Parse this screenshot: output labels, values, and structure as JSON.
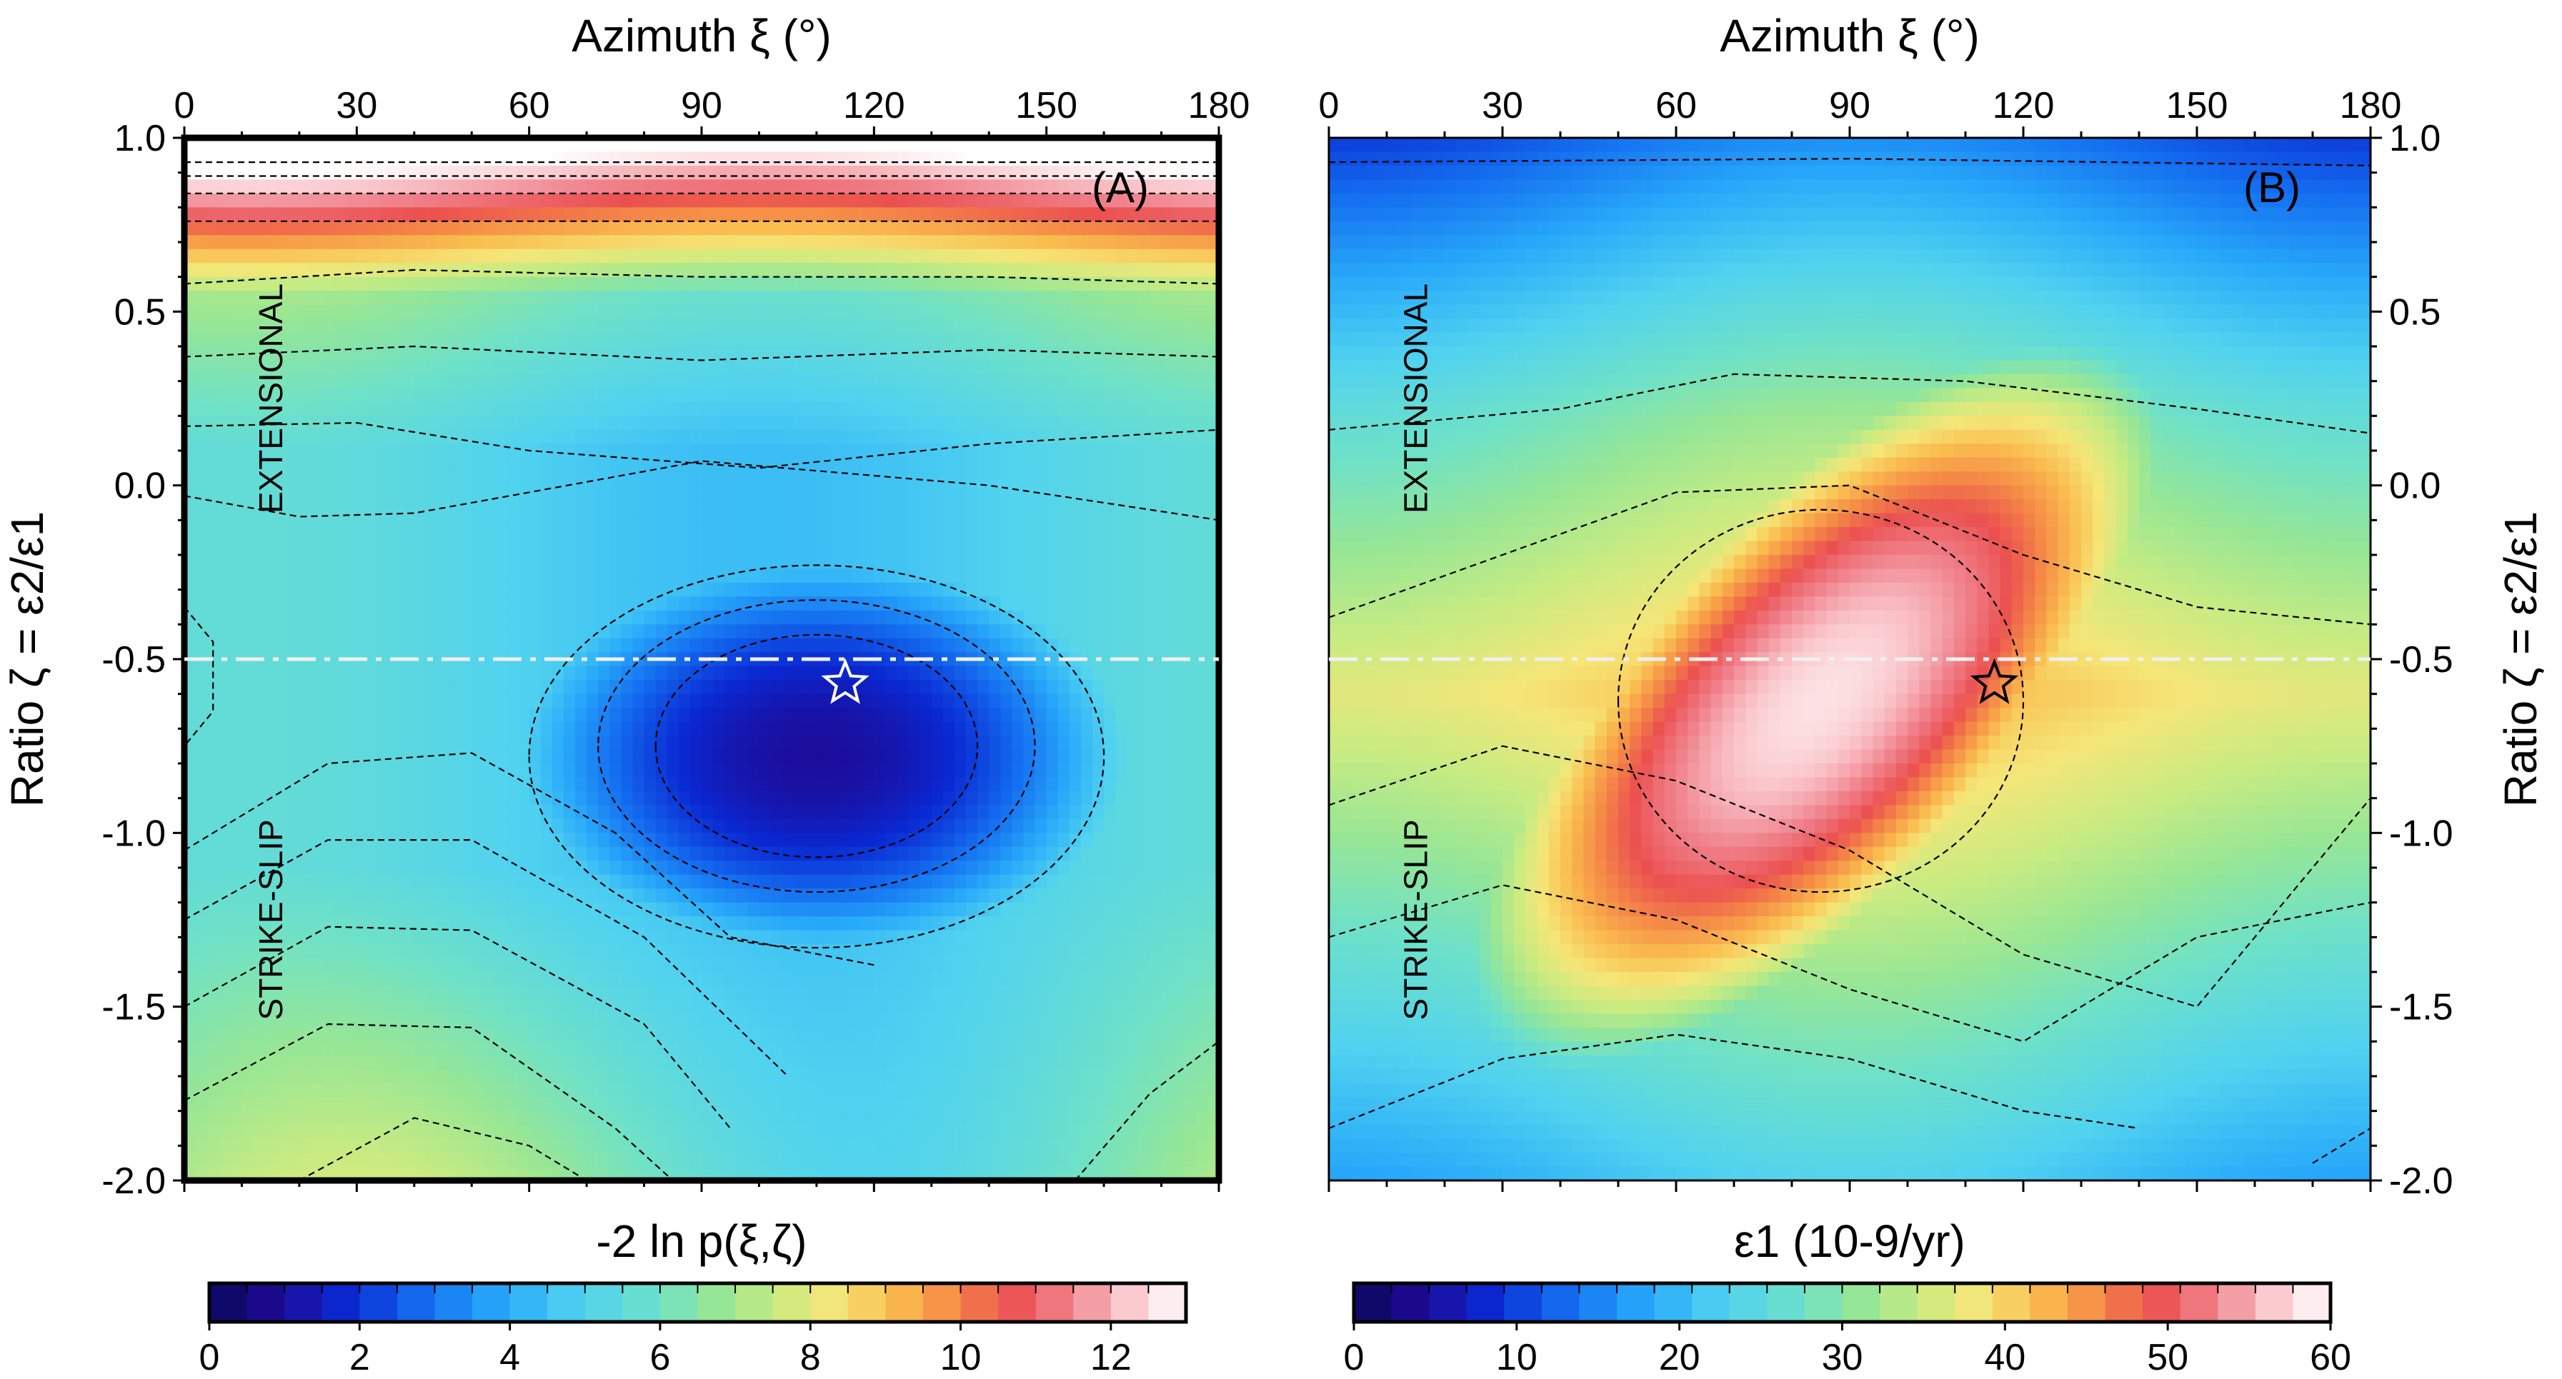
{
  "chart_data": [
    {
      "id": "A",
      "type": "heatmap",
      "panel_label": "(A)",
      "title_top": "Azimuth ξ (°)",
      "ylabel": "Ratio ζ = ε2/ε1",
      "xlim": [
        0,
        180
      ],
      "ylim": [
        -2.0,
        1.0
      ],
      "x_ticks": [
        "0",
        "30",
        "60",
        "90",
        "120",
        "150",
        "180"
      ],
      "y_ticks": [
        "1.0",
        "0.5",
        "0.0",
        "-0.5",
        "-1.0",
        "-1.5",
        "-2.0"
      ],
      "region_labels": [
        "EXTENSIONAL",
        "STRIKE-SLIP"
      ],
      "reference_line_y": -0.5,
      "star": {
        "x": 115,
        "y": -0.57
      },
      "minimum_location": {
        "x": 110,
        "y": -0.78
      },
      "colorbar": {
        "label": "-2 ln p(ξ,ζ)",
        "range": [
          0,
          13
        ],
        "ticks": [
          "0",
          "2",
          "4",
          "6",
          "8",
          "10",
          "12"
        ]
      }
    },
    {
      "id": "B",
      "type": "heatmap",
      "panel_label": "(B)",
      "title_top": "Azimuth ξ (°)",
      "ylabel": "Ratio ζ = ε2/ε1",
      "xlim": [
        0,
        180
      ],
      "ylim": [
        -2.0,
        1.0
      ],
      "x_ticks": [
        "0",
        "30",
        "60",
        "90",
        "120",
        "150",
        "180"
      ],
      "y_ticks": [
        "1.0",
        "0.5",
        "0.0",
        "-0.5",
        "-1.0",
        "-1.5",
        "-2.0"
      ],
      "region_labels": [
        "EXTENSIONAL",
        "STRIKE-SLIP"
      ],
      "reference_line_y": -0.5,
      "star": {
        "x": 115,
        "y": -0.57
      },
      "maximum_location": {
        "x": 85,
        "y": -0.62
      },
      "colorbar": {
        "label": "ε1 (10-9/yr)",
        "range": [
          0,
          60
        ],
        "ticks": [
          "0",
          "10",
          "20",
          "30",
          "40",
          "50",
          "60"
        ]
      }
    }
  ]
}
